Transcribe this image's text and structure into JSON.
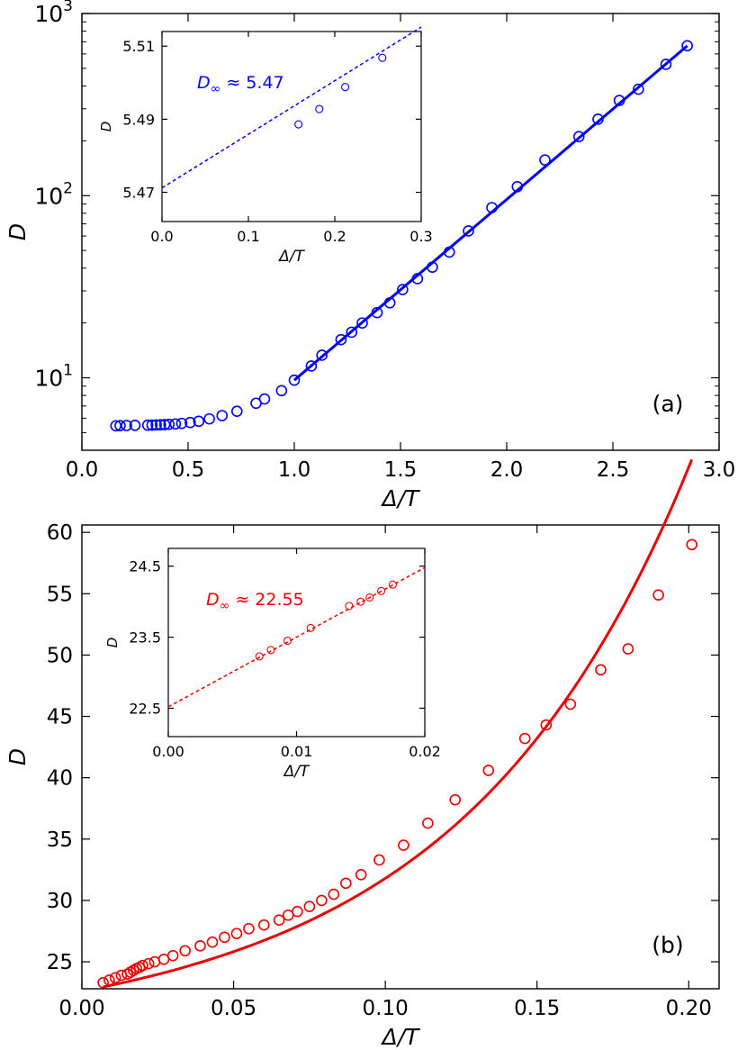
{
  "chart_data": [
    {
      "panel": "(a)",
      "type": "scatter",
      "color": "#0000ff",
      "xlabel": "Δ/T",
      "ylabel": "D",
      "xlim": [
        0.0,
        3.0
      ],
      "ylim": [
        4.0,
        1000
      ],
      "yscale": "log",
      "xticks": [
        "0.0",
        "0.5",
        "1.0",
        "1.5",
        "2.0",
        "2.5",
        "3.0"
      ],
      "yticks": [
        {
          "value": 10,
          "base": "10",
          "exp": "1"
        },
        {
          "value": 100,
          "base": "10",
          "exp": "2"
        },
        {
          "value": 1000,
          "base": "10",
          "exp": "3"
        }
      ],
      "points": {
        "x": [
          0.16,
          0.18,
          0.21,
          0.25,
          0.31,
          0.33,
          0.35,
          0.37,
          0.39,
          0.41,
          0.44,
          0.47,
          0.51,
          0.55,
          0.6,
          0.66,
          0.73,
          0.82,
          0.86,
          0.94,
          1.0,
          1.08,
          1.13,
          1.22,
          1.27,
          1.32,
          1.39,
          1.45,
          1.51,
          1.58,
          1.65,
          1.73,
          1.82,
          1.93,
          2.05,
          2.18,
          2.34,
          2.43,
          2.53,
          2.62,
          2.75,
          2.85
        ],
        "y": [
          5.45,
          5.46,
          5.47,
          5.48,
          5.49,
          5.5,
          5.51,
          5.52,
          5.53,
          5.55,
          5.58,
          5.62,
          5.68,
          5.77,
          5.95,
          6.2,
          6.55,
          7.25,
          7.65,
          8.5,
          9.7,
          11.6,
          13.3,
          16.2,
          17.8,
          20.0,
          22.8,
          25.8,
          30.5,
          35.0,
          40.5,
          49.0,
          64.0,
          86.0,
          112.0,
          157.0,
          211.0,
          263.0,
          333.0,
          384.0,
          526.0,
          665.0
        ]
      },
      "fit": {
        "style": "solid",
        "x": [
          1.0,
          2.85
        ],
        "y": [
          9.7,
          665.0
        ]
      },
      "annotation": "(a)",
      "inset": {
        "xlabel": "Δ/T",
        "ylabel": "D",
        "xlim": [
          0.0,
          0.3
        ],
        "ylim": [
          5.462,
          5.514
        ],
        "xticks": [
          "0.0",
          "0.1",
          "0.2",
          "0.3"
        ],
        "yticks": [
          "5.47",
          "5.49",
          "5.51"
        ],
        "points": {
          "x": [
            0.158,
            0.182,
            0.212,
            0.255
          ],
          "y": [
            5.4886,
            5.4928,
            5.4988,
            5.5068
          ]
        },
        "fit": {
          "style": "dashed",
          "x": [
            0.0,
            0.3
          ],
          "y": [
            5.4712,
            5.5152
          ]
        },
        "label_main": "D",
        "label_sub": "∞",
        "label_rest": " ≈ 5.47"
      }
    },
    {
      "panel": "(b)",
      "type": "scatter",
      "color": "#ee0000",
      "xlabel": "Δ/T",
      "ylabel": "D",
      "xlim": [
        0.0,
        0.21
      ],
      "ylim": [
        22.8,
        60.6
      ],
      "xticks": [
        "0.00",
        "0.05",
        "0.10",
        "0.15",
        "0.20"
      ],
      "yticks": [
        "25",
        "30",
        "35",
        "40",
        "45",
        "50",
        "55",
        "60"
      ],
      "points": {
        "x": [
          0.007,
          0.009,
          0.011,
          0.013,
          0.015,
          0.016,
          0.017,
          0.018,
          0.019,
          0.02,
          0.022,
          0.024,
          0.027,
          0.03,
          0.034,
          0.039,
          0.043,
          0.047,
          0.051,
          0.055,
          0.06,
          0.065,
          0.068,
          0.071,
          0.075,
          0.079,
          0.083,
          0.087,
          0.092,
          0.098,
          0.106,
          0.114,
          0.123,
          0.134,
          0.146,
          0.153,
          0.161,
          0.171,
          0.18,
          0.19,
          0.201
        ],
        "y": [
          23.3,
          23.5,
          23.7,
          23.9,
          24.0,
          24.15,
          24.3,
          24.45,
          24.55,
          24.7,
          24.85,
          25.0,
          25.2,
          25.5,
          25.9,
          26.3,
          26.6,
          27.0,
          27.3,
          27.7,
          28.0,
          28.4,
          28.8,
          29.1,
          29.5,
          30.0,
          30.5,
          31.4,
          32.1,
          33.3,
          34.5,
          36.3,
          38.2,
          40.6,
          43.2,
          44.3,
          46.0,
          48.8,
          50.5,
          54.9,
          59.0
        ]
      },
      "fit": {
        "style": "solid",
        "curve": "smooth through data",
        "x": [
          0.007,
          0.201
        ],
        "y": [
          23.3,
          59.0
        ]
      },
      "annotation": "(b)",
      "inset": {
        "xlabel": "Δ/T",
        "ylabel": "D",
        "xlim": [
          0.0,
          0.02
        ],
        "ylim": [
          22.1,
          24.75
        ],
        "xticks": [
          "0.00",
          "0.01",
          "0.02"
        ],
        "yticks": [
          "22.5",
          "23.5",
          "24.5"
        ],
        "points": {
          "x": [
            0.0071,
            0.008,
            0.0093,
            0.0111,
            0.0141,
            0.015,
            0.0157,
            0.0166,
            0.0175
          ],
          "y": [
            23.23,
            23.32,
            23.45,
            23.63,
            23.94,
            24.0,
            24.06,
            24.15,
            24.24
          ]
        },
        "fit": {
          "style": "dashed",
          "x": [
            0.0,
            0.02
          ],
          "y": [
            22.52,
            24.48
          ]
        },
        "label_main": "D",
        "label_sub": "∞",
        "label_rest": " ≈ 22.55"
      }
    }
  ]
}
